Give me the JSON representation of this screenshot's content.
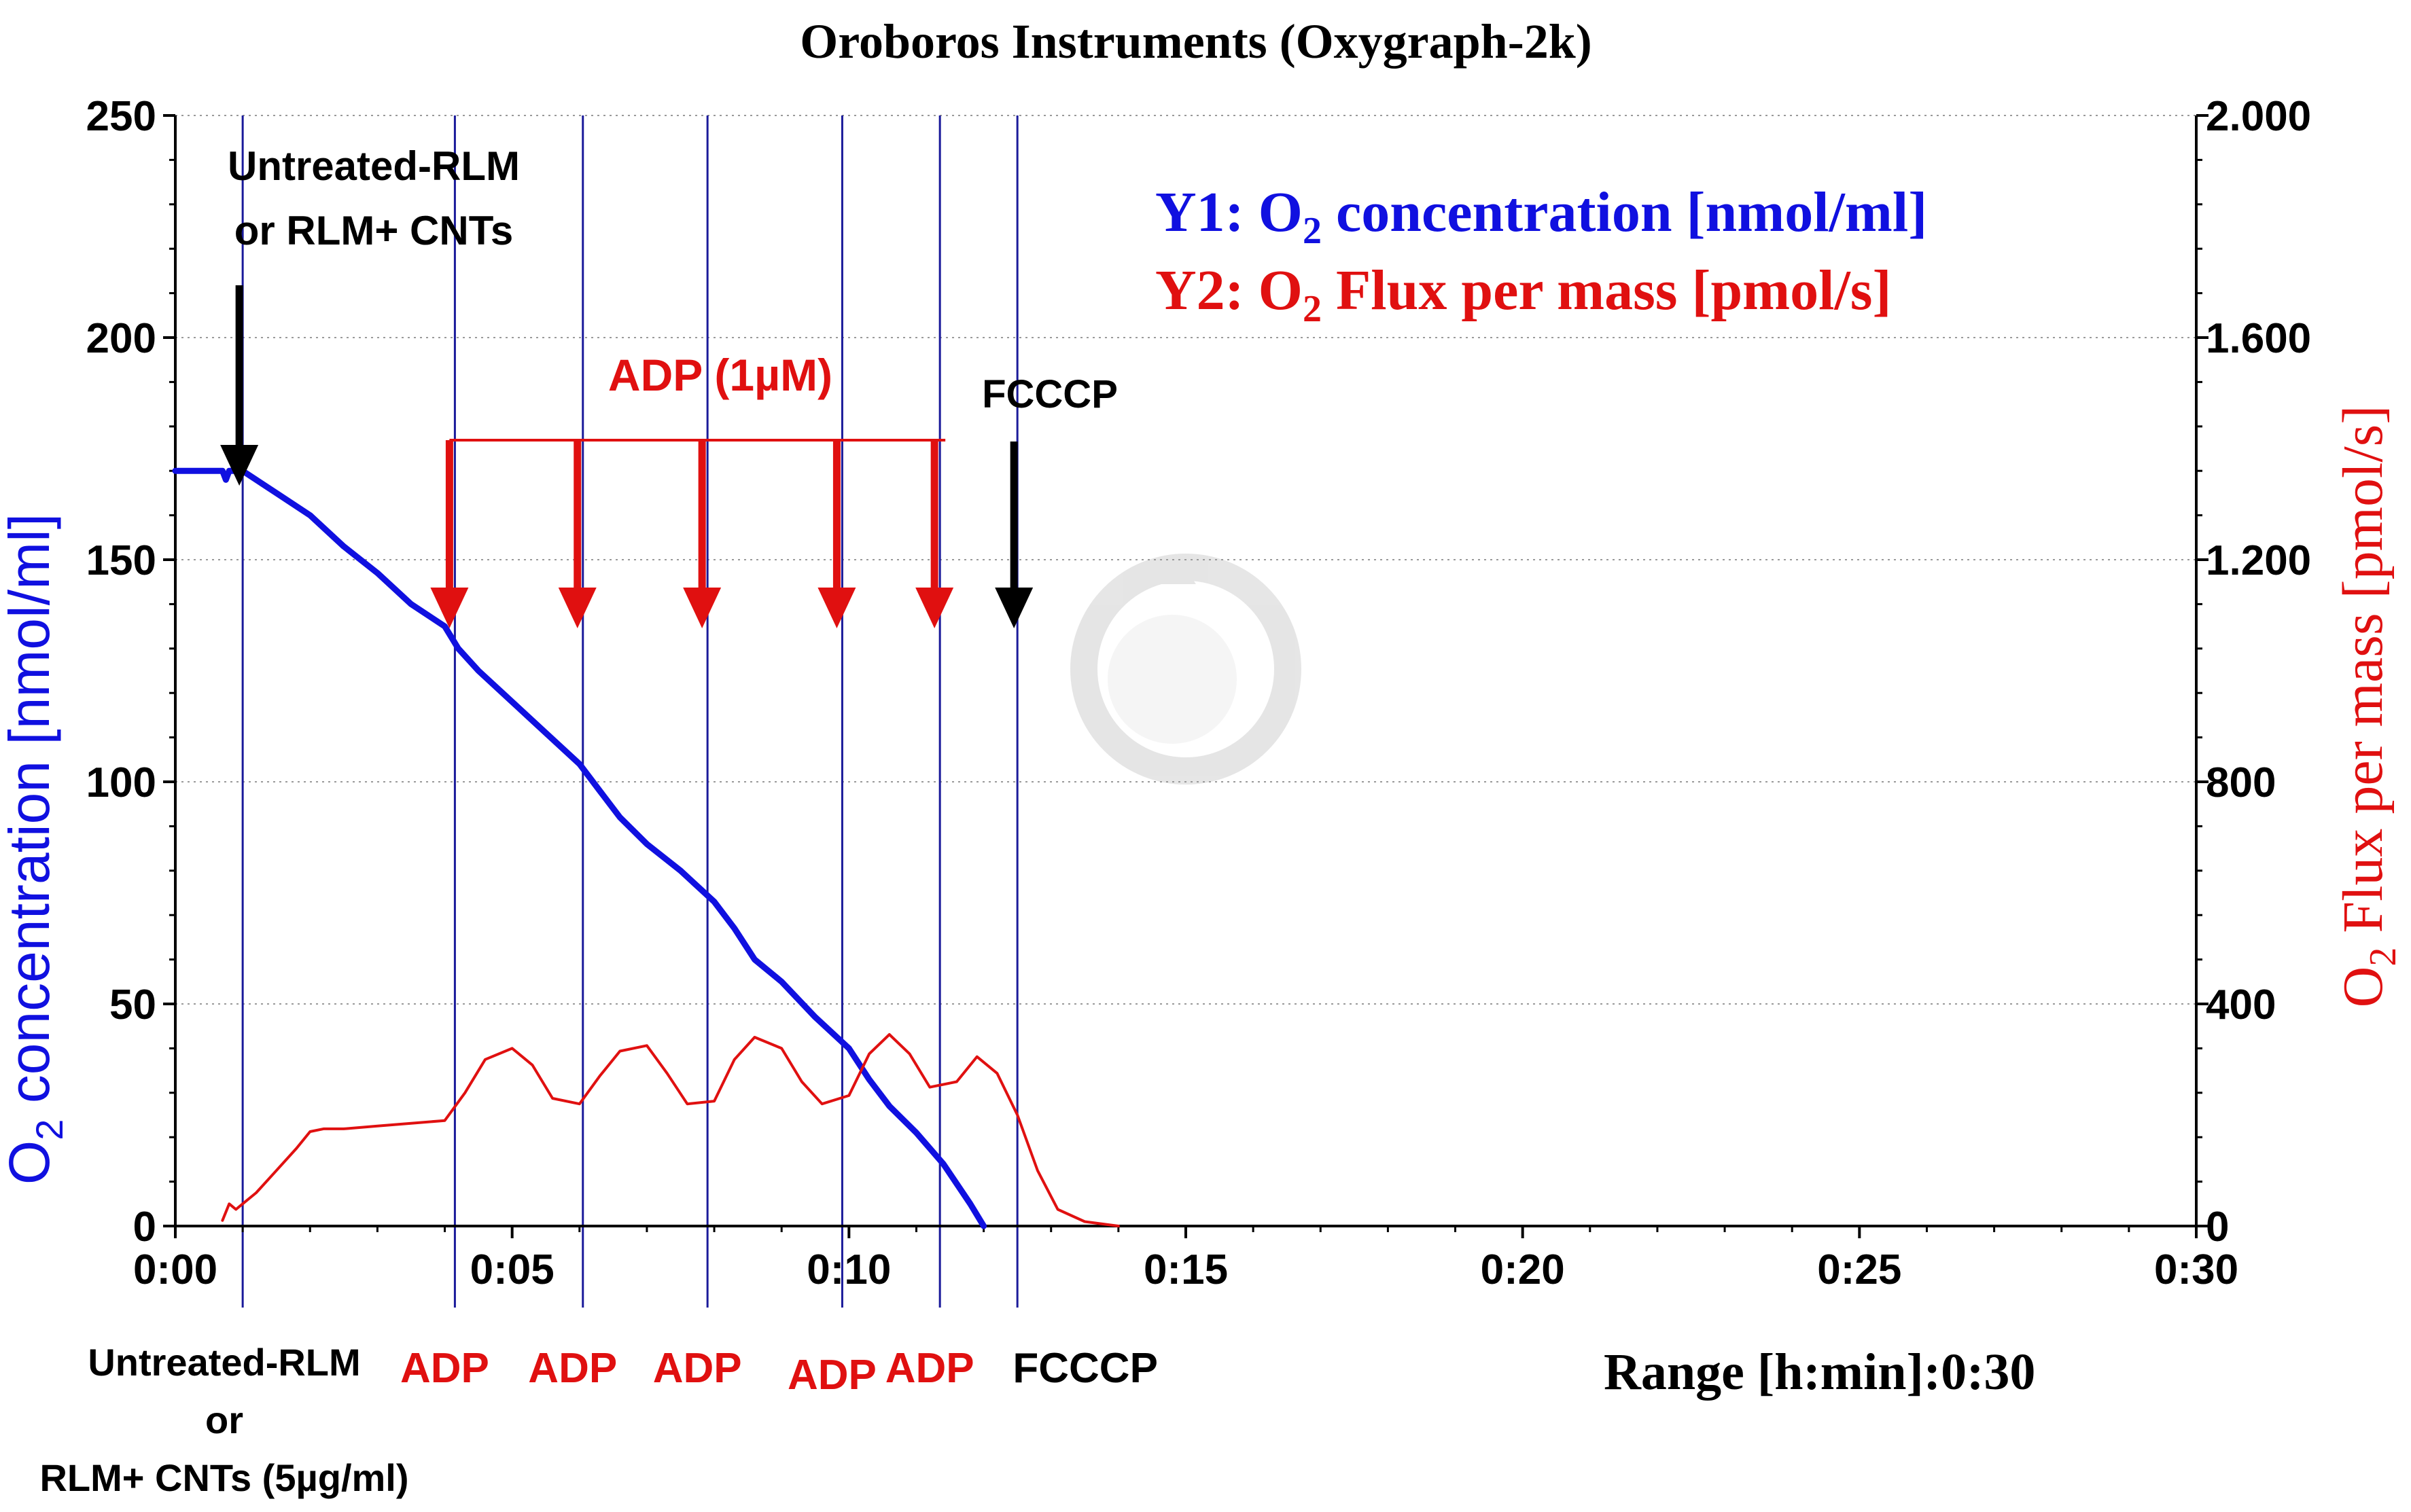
{
  "chart_data": {
    "type": "line",
    "title": "Oroboros Instruments (Oxygraph-2k)",
    "xlabel": "Range [h:min]:0:30",
    "x_range_label": "Range [h:min]:",
    "x_range_value": "0:30",
    "x_unit": "minutes",
    "xlim": [
      0,
      30
    ],
    "x_ticks": [
      0,
      5,
      10,
      15,
      20,
      25,
      30
    ],
    "x_tick_labels": [
      "0:00",
      "0:05",
      "0:10",
      "0:15",
      "0:20",
      "0:25",
      "0:30"
    ],
    "y1": {
      "label_pre": "O",
      "label_sub": "2",
      "label_post": " concentration [nmol/ml]",
      "lim": [
        0,
        250
      ],
      "ticks": [
        0,
        50,
        100,
        150,
        200,
        250
      ],
      "tick_labels": [
        "0",
        "50",
        "100",
        "150",
        "200",
        "250"
      ],
      "color": "#1010e0"
    },
    "y2": {
      "label_pre": "O",
      "label_sub": "2",
      "label_post": " Flux per mass [pmol/s]",
      "lim": [
        0,
        2000
      ],
      "ticks": [
        0,
        400,
        800,
        1200,
        1600,
        2000
      ],
      "tick_labels": [
        "0",
        "400",
        "800",
        "1.200",
        "1.600",
        "2.000"
      ],
      "color": "#e01010"
    },
    "series": [
      {
        "name": "O2 concentration",
        "axis": "y1",
        "color": "#1010e0",
        "x": [
          0,
          0.7,
          0.75,
          0.8,
          1.0,
          1.5,
          2.0,
          2.5,
          3.0,
          3.5,
          4.0,
          4.2,
          4.5,
          5.0,
          5.5,
          6.0,
          6.3,
          6.6,
          7.0,
          7.5,
          8.0,
          8.3,
          8.6,
          9.0,
          9.5,
          10.0,
          10.3,
          10.6,
          11.0,
          11.4,
          11.8,
          12.0
        ],
        "values": [
          170,
          170,
          168,
          170,
          170,
          165,
          160,
          153,
          147,
          140,
          135,
          130,
          125,
          118,
          111,
          104,
          98,
          92,
          86,
          80,
          73,
          67,
          60,
          55,
          47,
          40,
          33,
          27,
          21,
          14,
          5,
          0
        ]
      },
      {
        "name": "O2 Flux per mass",
        "axis": "y2",
        "color": "#e01010",
        "x": [
          0.7,
          0.8,
          0.9,
          1.0,
          1.2,
          1.5,
          1.8,
          2.0,
          2.2,
          2.5,
          3.0,
          3.5,
          4.0,
          4.3,
          4.6,
          5.0,
          5.3,
          5.6,
          6.0,
          6.3,
          6.6,
          7.0,
          7.3,
          7.6,
          8.0,
          8.3,
          8.6,
          9.0,
          9.3,
          9.6,
          10.0,
          10.3,
          10.6,
          10.9,
          11.2,
          11.6,
          11.9,
          12.2,
          12.5,
          12.8,
          13.1,
          13.5,
          14.0
        ],
        "values": [
          10,
          40,
          30,
          40,
          60,
          100,
          140,
          170,
          175,
          175,
          180,
          185,
          190,
          240,
          300,
          320,
          290,
          230,
          220,
          270,
          315,
          325,
          275,
          220,
          225,
          300,
          340,
          320,
          260,
          220,
          235,
          310,
          345,
          310,
          250,
          260,
          305,
          275,
          200,
          100,
          30,
          8,
          0
        ]
      }
    ],
    "event_times": [
      1.0,
      4.15,
      6.05,
      7.9,
      9.9,
      11.35,
      12.5
    ],
    "bottom_event_labels": [
      {
        "text": "ADP",
        "x": 4.15,
        "color": "#e01010"
      },
      {
        "text": "ADP",
        "x": 6.05,
        "color": "#e01010"
      },
      {
        "text": "ADP",
        "x": 7.9,
        "color": "#e01010"
      },
      {
        "text": "ADP",
        "x": 9.9,
        "color": "#e01010"
      },
      {
        "text": "ADP",
        "x": 11.35,
        "color": "#e01010"
      },
      {
        "text": "FCCCP",
        "x": 12.5,
        "color": "#000000"
      }
    ],
    "first_event_label_lines": [
      "Untreated-RLM",
      "or",
      "RLM+ CNTs (5µg/ml)"
    ],
    "annotations": {
      "top_left_lines": [
        "Untreated-RLM",
        "or RLM+ CNTs"
      ],
      "adp_bracket": "ADP (1µM)",
      "adp_arrow_times": [
        4.15,
        6.05,
        7.9,
        9.9,
        11.35
      ],
      "fcccp_label": "FCCCP",
      "fcccp_time": 12.5
    },
    "legend": {
      "position": "top-right",
      "y1_pre": "Y1: O",
      "y1_sub": "2",
      "y1_post": " concentration [nmol/ml]",
      "y2_pre": "Y2: O",
      "y2_sub": "2",
      "y2_post": " Flux per mass [pmol/s]"
    },
    "grid": true
  }
}
